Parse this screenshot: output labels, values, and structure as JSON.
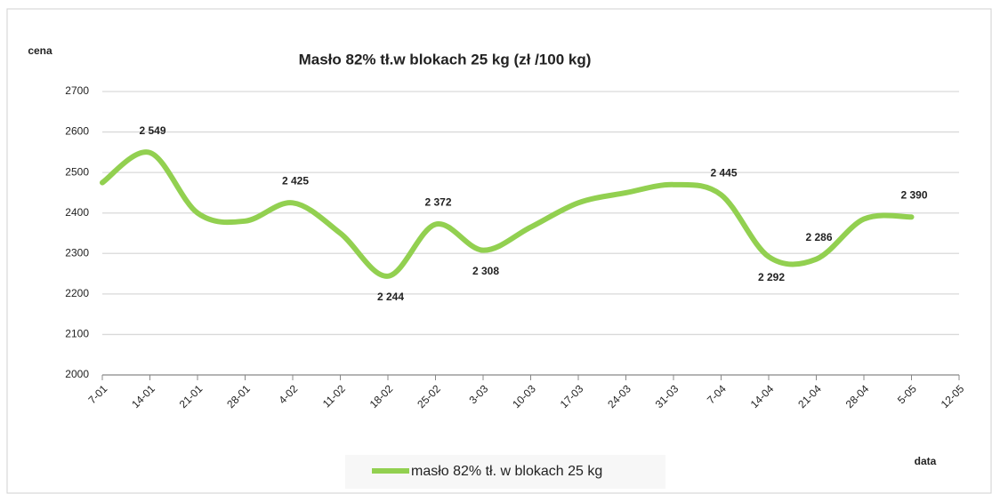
{
  "chart_data": {
    "type": "line",
    "title": "Masło 82% tł.w blokach  25 kg (zł /100 kg)",
    "y_label": "cena",
    "x_label": "data",
    "categories": [
      "7-01",
      "14-01",
      "21-01",
      "28-01",
      "4-02",
      "11-02",
      "18-02",
      "25-02",
      "3-03",
      "10-03",
      "17-03",
      "24-03",
      "31-03",
      "7-04",
      "14-04",
      "21-04",
      "28-04",
      "5-05",
      "12-05"
    ],
    "series": [
      {
        "name": "masło 82% tł. w blokach 25 kg",
        "color": "#92d050",
        "values": [
          2475,
          2549,
          2400,
          2380,
          2425,
          2350,
          2244,
          2372,
          2308,
          2365,
          2425,
          2450,
          2470,
          2445,
          2292,
          2286,
          2385,
          2390,
          null
        ],
        "value_labels": [
          null,
          "2 549",
          null,
          null,
          "2 425",
          null,
          "2 244",
          "2 372",
          "2 308",
          null,
          null,
          null,
          null,
          "2 445",
          "2 292",
          "2 286",
          null,
          "2 390",
          null
        ]
      }
    ],
    "ylim": [
      2000,
      2700
    ],
    "yticks": [
      2000,
      2100,
      2200,
      2300,
      2400,
      2500,
      2600,
      2700
    ],
    "grid": true
  }
}
